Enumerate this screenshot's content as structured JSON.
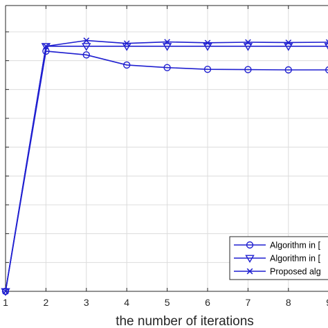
{
  "chart_data": {
    "type": "line",
    "xlabel": "the number of iterations",
    "x_ticks": [
      "1",
      "2",
      "3",
      "4",
      "5",
      "6",
      "7",
      "8",
      "9"
    ],
    "xlim": [
      1,
      9.2
    ],
    "ylim": [
      0,
      9
    ],
    "grid": true,
    "legend_position": "bottom-right",
    "series": [
      {
        "name": "Algorithm in [",
        "marker": "circle",
        "color": "#1f1fd0",
        "x": [
          1,
          2,
          3,
          4,
          5,
          6,
          7,
          8,
          9,
          9.2
        ],
        "y": [
          0,
          8.33,
          8.2,
          7.85,
          7.76,
          7.7,
          7.69,
          7.68,
          7.68,
          7.68
        ]
      },
      {
        "name": "Algorithm in [",
        "marker": "triangle-down",
        "color": "#1f1fd0",
        "x": [
          1,
          2,
          3,
          4,
          5,
          6,
          7,
          8,
          9,
          9.2
        ],
        "y": [
          0,
          8.5,
          8.5,
          8.5,
          8.5,
          8.5,
          8.5,
          8.5,
          8.5,
          8.5
        ]
      },
      {
        "name": "Proposed alg",
        "marker": "x",
        "color": "#1f1fd0",
        "x": [
          1,
          2,
          3,
          4,
          5,
          6,
          7,
          8,
          9,
          9.2
        ],
        "y": [
          0,
          8.5,
          8.7,
          8.6,
          8.65,
          8.62,
          8.64,
          8.63,
          8.64,
          8.64
        ]
      }
    ]
  }
}
